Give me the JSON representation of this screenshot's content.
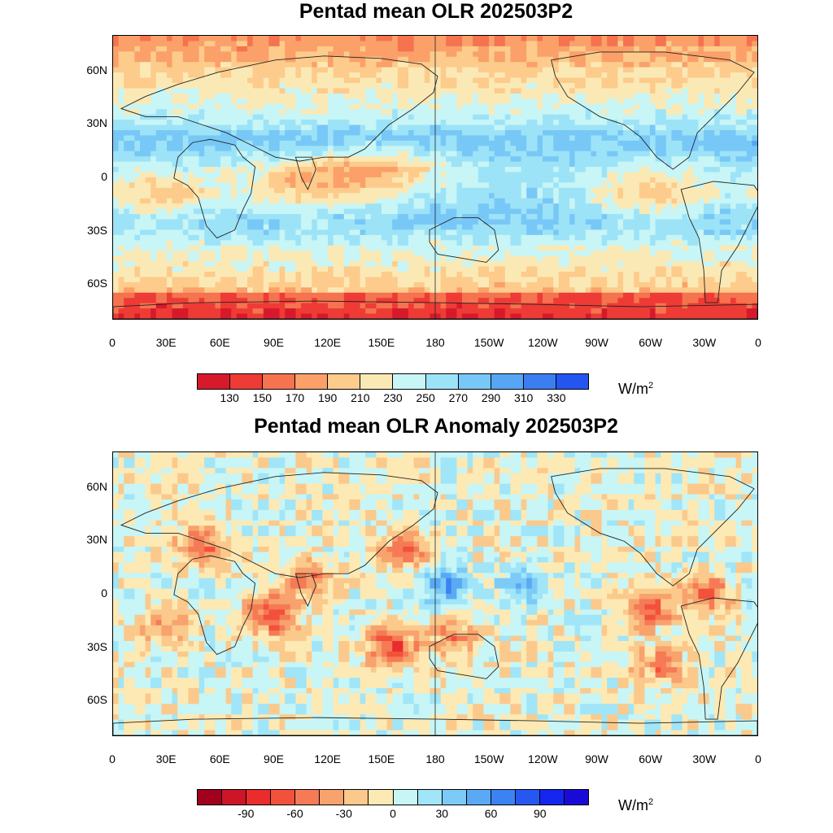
{
  "panels": [
    {
      "title": "Pentad mean OLR 202503P2",
      "unit_base": "W/m",
      "unit_exp": "2",
      "colorbar": {
        "colors": [
          "#d7192c",
          "#ee3b35",
          "#f5734f",
          "#fba069",
          "#fdcb8b",
          "#fbe9b5",
          "#c8f5f5",
          "#9de3f8",
          "#78c8f7",
          "#57a5f5",
          "#3a7ef2",
          "#2455f0"
        ],
        "labels": [
          "130",
          "150",
          "170",
          "190",
          "210",
          "230",
          "250",
          "270",
          "290",
          "310",
          "330"
        ]
      }
    },
    {
      "title": "Pentad mean OLR Anomaly 202503P2",
      "unit_base": "W/m",
      "unit_exp": "2",
      "colorbar": {
        "colors": [
          "#a1001e",
          "#cc1628",
          "#ea2c2c",
          "#f2513c",
          "#f57a55",
          "#f8a26d",
          "#fbc98b",
          "#fde9b3",
          "#c8f5f5",
          "#a0e5f8",
          "#7ccbf7",
          "#5aa9f5",
          "#3b82f2",
          "#2658f1",
          "#1526ef",
          "#1a0ad8"
        ],
        "labels": [
          "-90",
          "-60",
          "-30",
          "0",
          "30",
          "60",
          "90"
        ]
      }
    }
  ],
  "x_axis_labels": [
    "0",
    "30E",
    "60E",
    "90E",
    "120E",
    "150E",
    "180",
    "150W",
    "120W",
    "90W",
    "60W",
    "30W",
    "0"
  ],
  "y_axis_labels": [
    "60N",
    "30N",
    "0",
    "30S",
    "60S"
  ],
  "map_extent": {
    "lon_range": [
      0,
      360
    ],
    "lat_range": [
      -80,
      80
    ]
  }
}
